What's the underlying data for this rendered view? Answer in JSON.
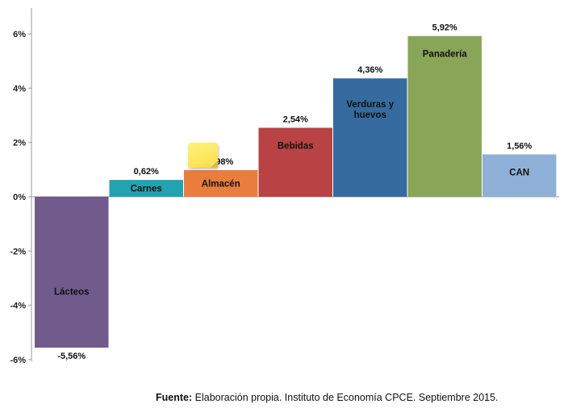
{
  "chart_data": {
    "type": "bar",
    "categories": [
      "Lácteos",
      "Carnes",
      "Almacén",
      "Bebidas",
      "Verduras y huevos",
      "Panadería",
      "CAN"
    ],
    "category_lines": [
      [
        "Lácteos"
      ],
      [
        "Carnes"
      ],
      [
        "Almacén"
      ],
      [
        "Bebidas"
      ],
      [
        "Verduras y",
        "huevos"
      ],
      [
        "Panadería"
      ],
      [
        "CAN"
      ]
    ],
    "values": [
      -5.56,
      0.62,
      0.98,
      2.54,
      4.36,
      5.92,
      1.56
    ],
    "data_labels": [
      "-5,56%",
      "0,62%",
      "0,98%",
      "2,54%",
      "4,36%",
      "5,92%",
      "1,56%"
    ],
    "colors": [
      "#715a8c",
      "#23a3b0",
      "#e87d3e",
      "#b84244",
      "#356b9e",
      "#89a558",
      "#8fb0d6"
    ],
    "ylim": [
      -6,
      6
    ],
    "y_ticks": [
      6,
      4,
      2,
      0,
      -2,
      -4,
      -6
    ],
    "y_tick_labels": [
      "6%",
      "4%",
      "2%",
      "0%",
      "-2%",
      "-4%",
      "-6%"
    ],
    "grid": false,
    "legend": "none"
  },
  "source": {
    "label": "Fuente:",
    "text": "Elaboración propia. Instituto de Economía CPCE. Septiembre 2015."
  },
  "sticky_note": {
    "color": "#fde45a"
  }
}
